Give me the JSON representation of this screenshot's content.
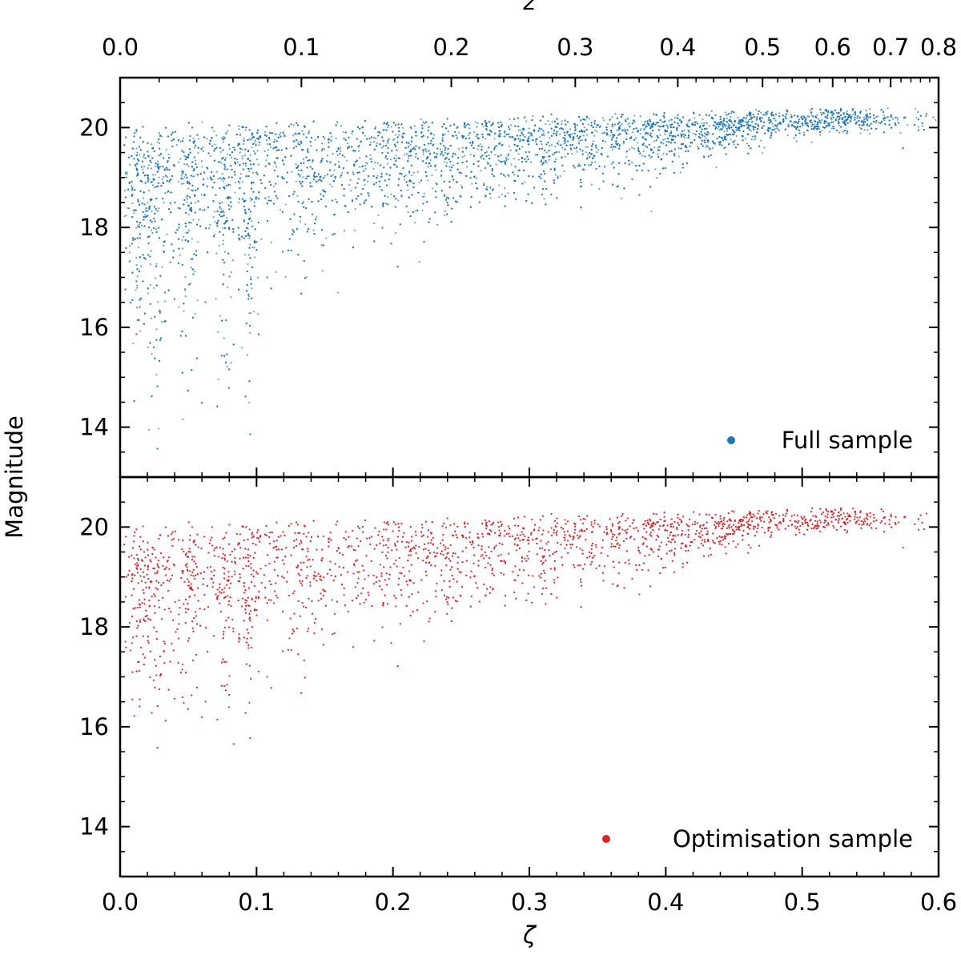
{
  "chart_data": [
    {
      "type": "scatter",
      "panel": "top",
      "legend": "Full sample",
      "legend_position": "bottom-right",
      "color": "#1f77b4",
      "top_axis_label": "z",
      "top_ticks": [
        "0.0",
        "0.1",
        "0.2",
        "0.3",
        "0.4",
        "0.5",
        "0.6",
        "0.7",
        "0.8"
      ],
      "top_tick_values": [
        0.0,
        0.1,
        0.2,
        0.3,
        0.4,
        0.5,
        0.6,
        0.7,
        0.8
      ],
      "ylabel": "Magnitude",
      "yticks": [
        "14",
        "16",
        "18",
        "20"
      ],
      "ytick_values": [
        14,
        16,
        18,
        20
      ],
      "xlim": [
        0.0,
        0.6
      ],
      "ylim": [
        13,
        21
      ],
      "description_points": [
        [
          0.02,
          19.5
        ],
        [
          0.05,
          15.0
        ],
        [
          0.1,
          18.5
        ],
        [
          0.2,
          19.0
        ],
        [
          0.3,
          19.3
        ],
        [
          0.4,
          19.7
        ],
        [
          0.5,
          20.1
        ],
        [
          0.55,
          20.2
        ]
      ]
    },
    {
      "type": "scatter",
      "panel": "bottom",
      "legend": "Optimisation sample",
      "legend_position": "bottom-right",
      "color": "#d62728",
      "xlabel": "ζ",
      "xticks": [
        "0.0",
        "0.1",
        "0.2",
        "0.3",
        "0.4",
        "0.5",
        "0.6"
      ],
      "xtick_values": [
        0.0,
        0.1,
        0.2,
        0.3,
        0.4,
        0.5,
        0.6
      ],
      "ylabel": "Magnitude",
      "yticks": [
        "14",
        "16",
        "18",
        "20"
      ],
      "ytick_values": [
        14,
        16,
        18,
        20
      ],
      "xlim": [
        0.0,
        0.6
      ],
      "ylim": [
        13,
        21
      ],
      "description_points": [
        [
          0.02,
          19.0
        ],
        [
          0.05,
          16.0
        ],
        [
          0.1,
          18.5
        ],
        [
          0.2,
          19.0
        ],
        [
          0.3,
          19.4
        ],
        [
          0.4,
          19.8
        ],
        [
          0.45,
          20.1
        ],
        [
          0.5,
          20.2
        ]
      ]
    }
  ]
}
